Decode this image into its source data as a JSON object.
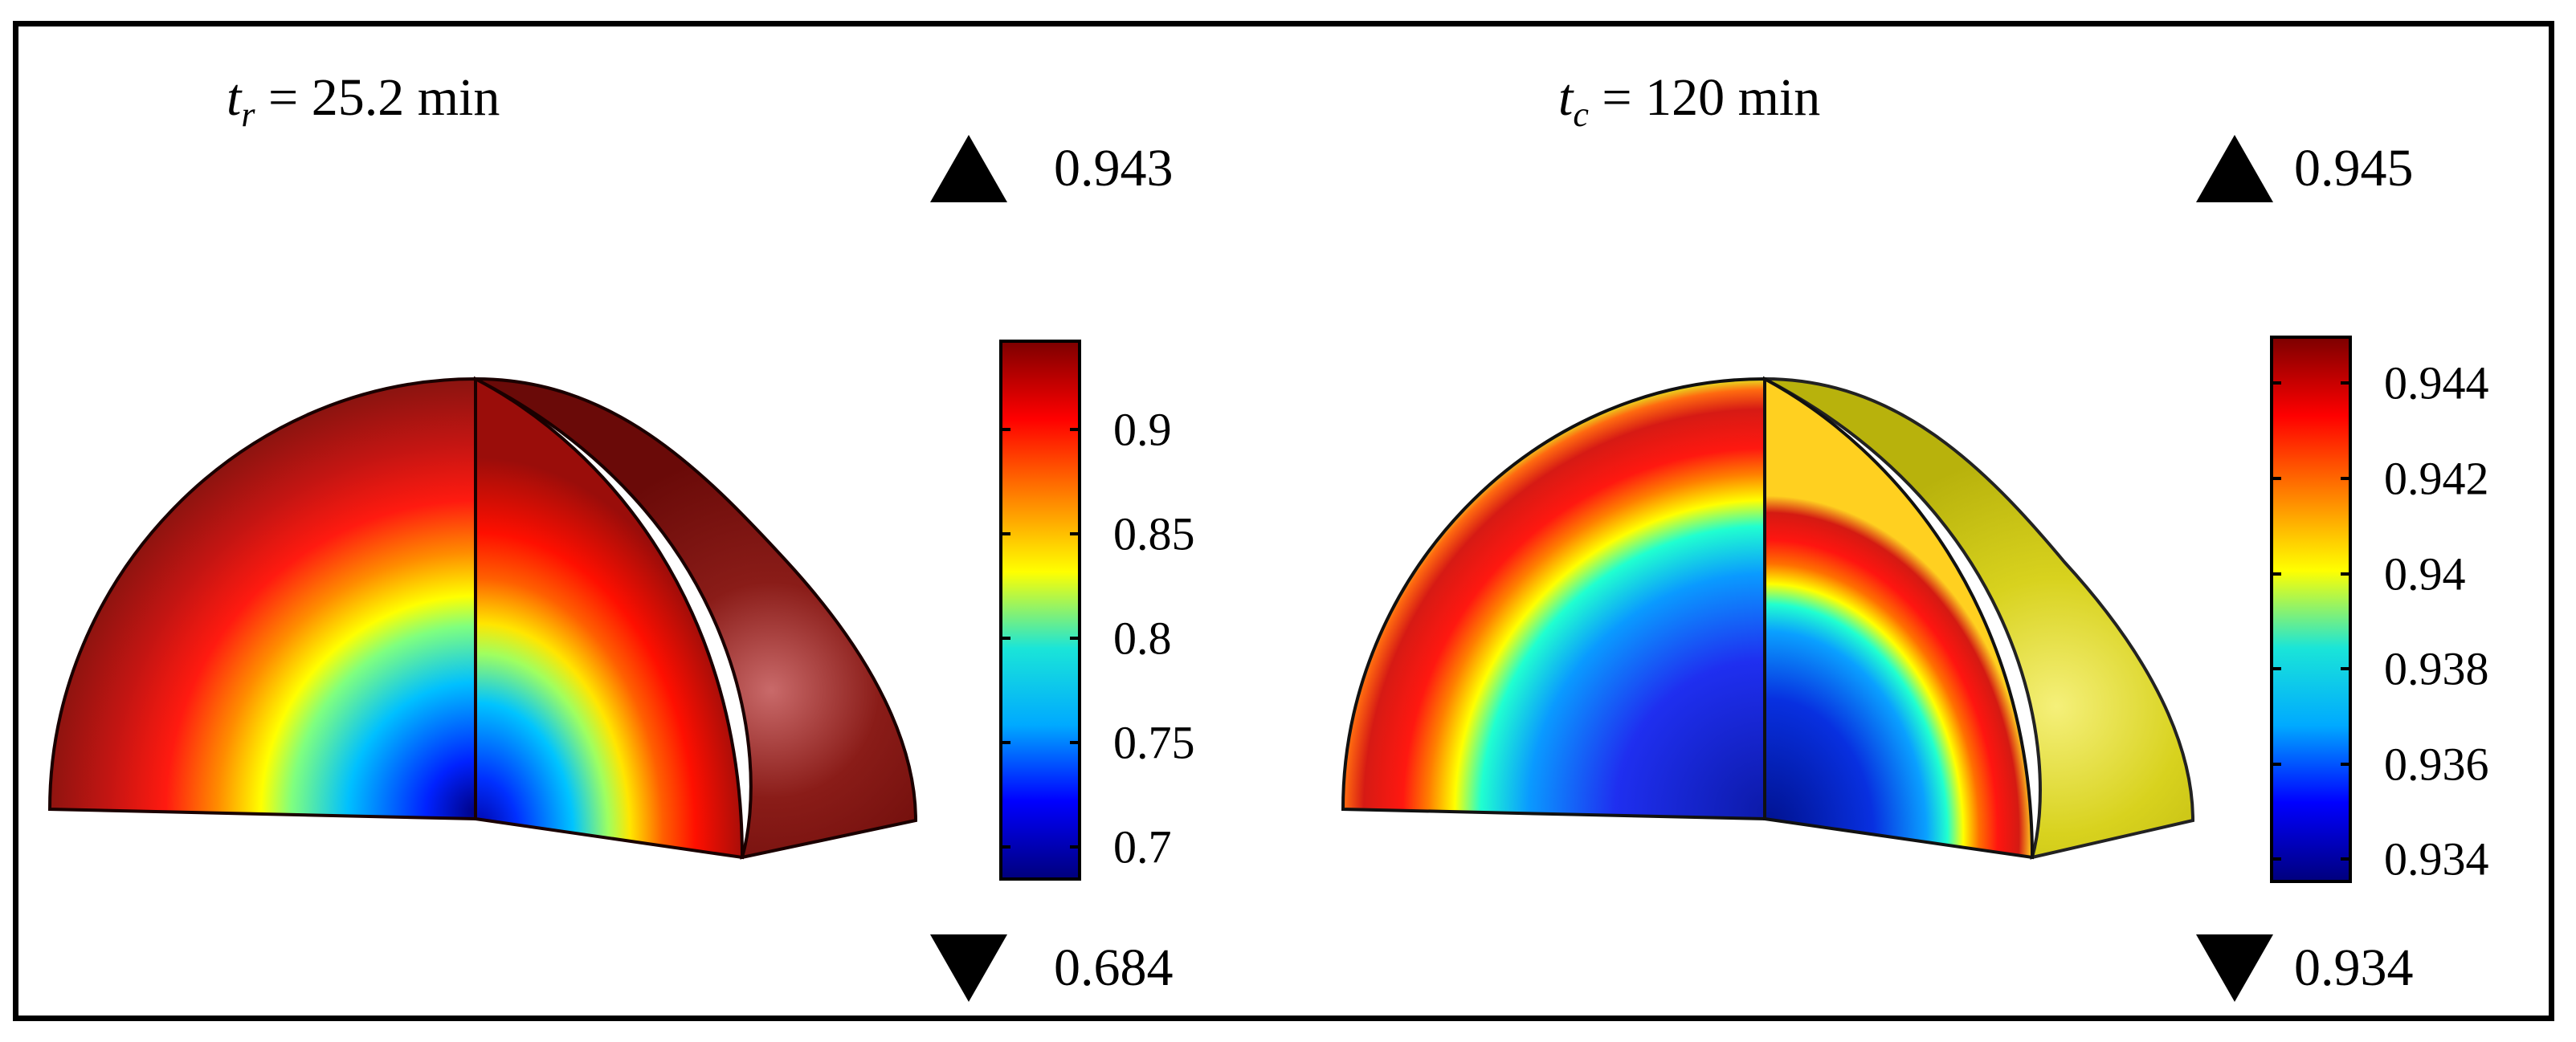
{
  "panels": [
    {
      "title_var": "t",
      "title_sub": "r",
      "title_rest": " = 25.2 min",
      "max_label": "0.943",
      "min_label": "0.684",
      "colorbar_ticks": [
        "0.9",
        "0.85",
        "0.8",
        "0.75",
        "0.7"
      ],
      "colorbar_tick_values": [
        0.9,
        0.85,
        0.8,
        0.75,
        0.7
      ],
      "colorbar_range": [
        0.684,
        0.943
      ],
      "surface_color": "#ecd51f"
    },
    {
      "title_var": "t",
      "title_sub": "c",
      "title_rest": " = 120 min",
      "max_label": "0.945",
      "min_label": "0.934",
      "colorbar_ticks": [
        "0.944",
        "0.942",
        "0.94",
        "0.938",
        "0.936",
        "0.934"
      ],
      "colorbar_tick_values": [
        0.944,
        0.942,
        0.94,
        0.938,
        0.936,
        0.934
      ],
      "colorbar_range": [
        0.9335,
        0.945
      ],
      "surface_color": "#d4cf1e"
    }
  ],
  "colormap": {
    "name": "jet",
    "stops": [
      "#00007f",
      "#0000ff",
      "#00aaff",
      "#1ae5d8",
      "#ffff00",
      "#ff7f00",
      "#ff0000",
      "#7f0000"
    ]
  }
}
